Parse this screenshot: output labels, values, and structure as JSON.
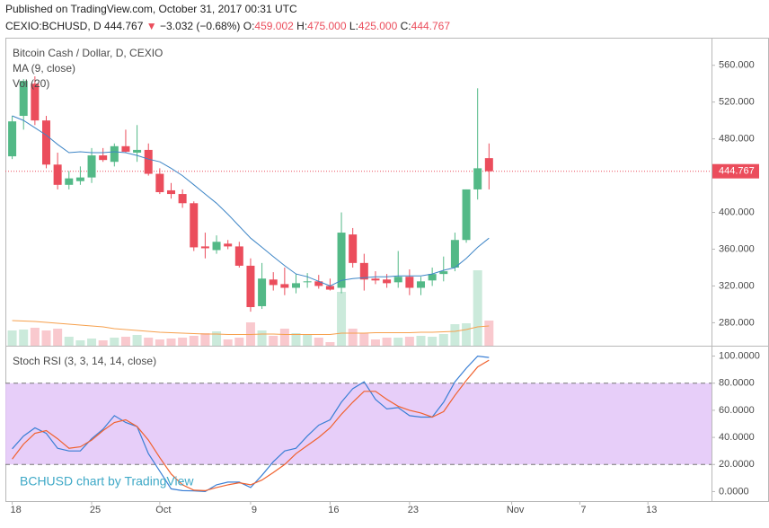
{
  "header": {
    "published": "Published on TradingView.com, October 31, 2017 00:31 UTC",
    "symbol": "CEXIO:BCHUSD, D",
    "last": "444.767",
    "arrow": "▼",
    "change": "−3.032 (−0.68%)",
    "o_label": "O:",
    "o": "459.002",
    "h_label": "H:",
    "h": "475.000",
    "l_label": "L:",
    "l": "425.000",
    "c_label": "C:",
    "c": "444.767"
  },
  "chart_data": [
    {
      "type": "candlestick",
      "title": "Bitcoin Cash / Dollar, D, CEXIO",
      "xlim": [
        -0.6,
        61.6
      ],
      "xticks": [
        {
          "value": 0,
          "label": "18"
        },
        {
          "value": 7,
          "label": "25"
        },
        {
          "value": 13,
          "label": "Oct"
        },
        {
          "value": 21,
          "label": "9"
        },
        {
          "value": 28,
          "label": "16"
        },
        {
          "value": 35,
          "label": "23"
        },
        {
          "value": 44,
          "label": "Nov"
        },
        {
          "value": 50,
          "label": "7"
        },
        {
          "value": 56,
          "label": "13"
        }
      ],
      "ylim": [
        255,
        590
      ],
      "yticks": [
        {
          "value": 280,
          "label": "280.000"
        },
        {
          "value": 320,
          "label": "320.000"
        },
        {
          "value": 360,
          "label": "360.000"
        },
        {
          "value": 400,
          "label": "400.000"
        },
        {
          "value": 440,
          "label": "440.000"
        },
        {
          "value": 480,
          "label": "480.000"
        },
        {
          "value": 520,
          "label": "520.000"
        },
        {
          "value": 560,
          "label": "560.000"
        }
      ],
      "up_color": "#53b987",
      "down_color": "#eb4d5c",
      "open": [
        461,
        505,
        540,
        500,
        452,
        430,
        434,
        438,
        462,
        455,
        472,
        465,
        468,
        442,
        424,
        420,
        410,
        363,
        359,
        366,
        363,
        342,
        298,
        327,
        322,
        318,
        324,
        325,
        320,
        318,
        376,
        345,
        328,
        327,
        324,
        330,
        318,
        326,
        333,
        340,
        370,
        425,
        459.002
      ],
      "high": [
        505,
        545,
        548,
        505,
        465,
        445,
        450,
        470,
        470,
        475,
        490,
        495,
        475,
        448,
        432,
        425,
        412,
        378,
        375,
        370,
        368,
        350,
        345,
        335,
        340,
        333,
        334,
        332,
        328,
        400,
        383,
        355,
        336,
        333,
        358,
        338,
        330,
        340,
        352,
        378,
        425,
        535,
        475
      ],
      "low": [
        458,
        490,
        495,
        448,
        425,
        425,
        430,
        432,
        455,
        450,
        465,
        455,
        440,
        420,
        415,
        405,
        358,
        350,
        355,
        360,
        340,
        292,
        295,
        315,
        310,
        312,
        318,
        317,
        315,
        312,
        340,
        315,
        322,
        318,
        318,
        310,
        310,
        320,
        325,
        336,
        367,
        414,
        425
      ],
      "close": [
        499,
        543,
        500,
        452,
        430,
        437,
        438,
        462,
        457,
        472,
        466,
        468,
        442,
        422,
        420,
        410,
        362,
        361,
        368,
        363,
        342,
        297,
        328,
        321,
        318,
        323,
        325,
        320,
        316,
        378,
        345,
        327,
        326,
        323,
        330,
        318,
        325,
        333,
        336,
        370,
        425,
        448,
        444.767
      ],
      "ma": {
        "name": "MA (9, close)",
        "color": "#3d85c6",
        "values": [
          505,
          500,
          492,
          484,
          474,
          465,
          466,
          465,
          465,
          466,
          465,
          462,
          458,
          455,
          448,
          440,
          430,
          420,
          410,
          398,
          385,
          372,
          362,
          352,
          342,
          333,
          330,
          325,
          320,
          326,
          328,
          329,
          330,
          330,
          331,
          331,
          331,
          333,
          337,
          340,
          350,
          362,
          372
        ]
      },
      "volume": {
        "name": "Vol (20)",
        "ylim": [
          0,
          343
        ],
        "values": [
          17,
          18,
          20,
          17,
          19,
          10,
          6,
          8,
          6,
          9,
          10,
          12,
          9,
          7,
          8,
          9,
          11,
          14,
          16,
          7,
          9,
          26,
          17,
          11,
          19,
          14,
          13,
          9,
          4,
          60,
          19,
          14,
          7,
          9,
          9,
          10,
          11,
          10,
          13,
          24,
          25,
          84,
          28
        ],
        "ma_color": "#f6a04d",
        "ma": [
          28,
          27.5,
          27,
          26,
          25,
          24,
          23,
          22,
          21,
          19,
          18,
          17,
          16,
          15,
          14.5,
          14,
          13.5,
          13,
          13,
          12.5,
          12.5,
          12.5,
          13,
          13,
          12.5,
          12.5,
          12.5,
          12.5,
          12.5,
          14,
          14,
          14,
          14.5,
          14.5,
          14.5,
          14.5,
          15,
          15,
          15.5,
          16,
          18,
          21,
          22
        ]
      }
    },
    {
      "type": "line",
      "title": "Stoch RSI (3, 3, 14, 14, close)",
      "watermark": "BCHUSD chart by TradingView",
      "ylim": [
        -7,
        107
      ],
      "yticks": [
        {
          "value": 0,
          "label": "0.0000"
        },
        {
          "value": 20,
          "label": "20.0000"
        },
        {
          "value": 40,
          "label": "40.0000"
        },
        {
          "value": 60,
          "label": "60.0000"
        },
        {
          "value": 80,
          "label": "80.0000"
        },
        {
          "value": 100,
          "label": "100.0000"
        }
      ],
      "band": [
        20,
        80
      ],
      "band_color": "#e3c6f8",
      "series": [
        {
          "name": "K",
          "color": "#3a7fd5",
          "values": [
            31.6,
            41,
            47,
            43,
            32,
            30,
            30,
            39,
            46,
            56,
            51,
            48,
            28,
            15,
            2,
            0.7,
            0.5,
            0,
            5,
            7,
            7,
            3,
            12,
            22,
            30,
            32,
            41,
            49,
            53,
            66,
            76,
            81,
            68,
            61,
            62,
            56,
            55,
            55,
            66,
            81,
            91,
            100,
            99
          ]
        },
        {
          "name": "D",
          "color": "#f0612e",
          "values": [
            24,
            35,
            43,
            45,
            39,
            32,
            33,
            38,
            45,
            51,
            53,
            48,
            38,
            25,
            13,
            5,
            1,
            0.7,
            3,
            5,
            6.5,
            5,
            8.5,
            14,
            20,
            28,
            34,
            40,
            47,
            57,
            66,
            74,
            74,
            68,
            63,
            60,
            58,
            55,
            59,
            71,
            82,
            92,
            97
          ]
        }
      ]
    }
  ]
}
